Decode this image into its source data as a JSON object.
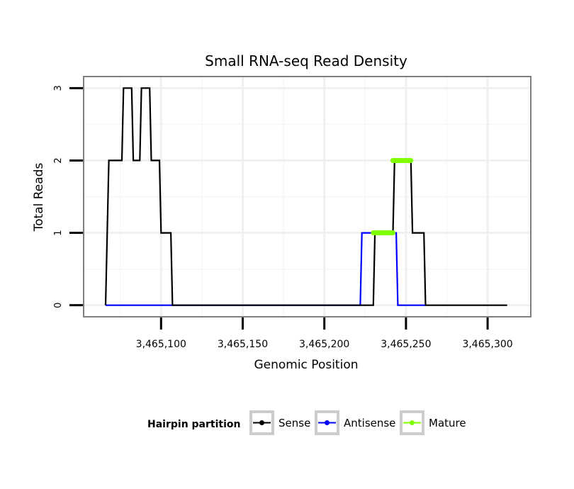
{
  "chart_data": {
    "type": "line",
    "title": "Small RNA-seq Read Density",
    "xlabel": "Genomic Position",
    "ylabel": "Total Reads",
    "xlim": [
      3465053,
      3465326
    ],
    "ylim": [
      -0.15,
      3.15
    ],
    "x_ticks": [
      3465100,
      3465150,
      3465200,
      3465250,
      3465300
    ],
    "x_tick_labels": [
      "3,465,100",
      "3,465,150",
      "3,465,200",
      "3,465,250",
      "3,465,300"
    ],
    "y_ticks": [
      0,
      1,
      2,
      3
    ],
    "y_tick_labels": [
      "0",
      "1",
      "2",
      "3"
    ],
    "grid": true,
    "legend_title": "Hairpin partition",
    "legend_position": "bottom",
    "series": [
      {
        "name": "Sense",
        "color": "#000000",
        "x": [
          3465066,
          3465068,
          3465076,
          3465077,
          3465082,
          3465083,
          3465087,
          3465088,
          3465093,
          3465094,
          3465099,
          3465100,
          3465106,
          3465107,
          3465230,
          3465231,
          3465242,
          3465243,
          3465253,
          3465254,
          3465261,
          3465262,
          3465312
        ],
        "y": [
          0,
          2,
          2,
          3,
          3,
          2,
          2,
          3,
          3,
          2,
          2,
          1,
          1,
          0,
          0,
          1,
          1,
          2,
          2,
          1,
          1,
          0,
          0
        ]
      },
      {
        "name": "Antisense",
        "color": "#0000ff",
        "x": [
          3465066,
          3465222,
          3465223,
          3465244,
          3465245,
          3465262
        ],
        "y": [
          0,
          0,
          1,
          1,
          0,
          0
        ]
      },
      {
        "name": "Mature",
        "color": "#7fff00",
        "segments": [
          {
            "x": [
              3465230,
              3465242
            ],
            "y": 1
          },
          {
            "x": [
              3465242,
              3465253
            ],
            "y": 2
          }
        ]
      }
    ]
  }
}
